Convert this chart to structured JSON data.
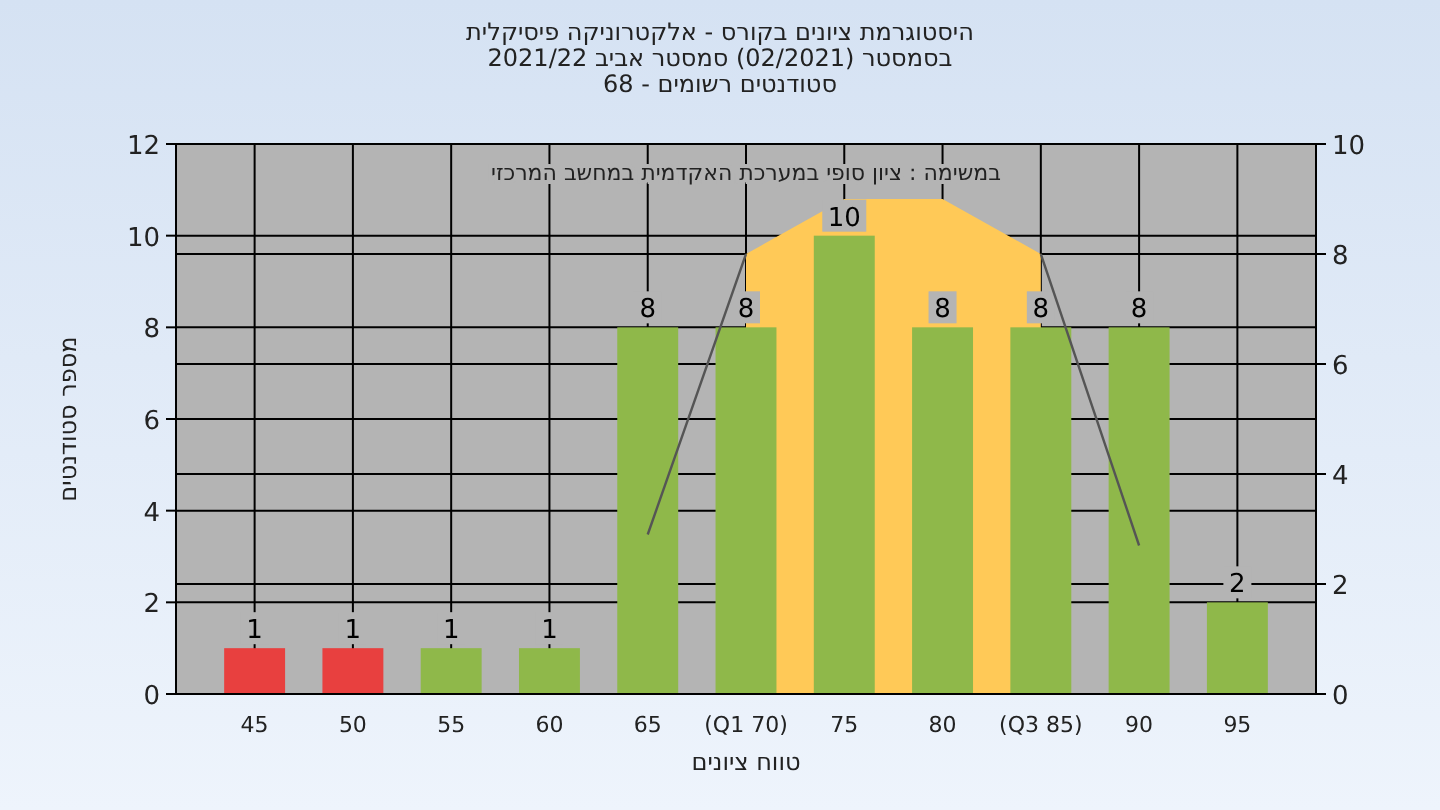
{
  "chart_data": {
    "type": "bar",
    "title": "היסטוגרמת ציונים בקורס - אלקטרוניקה פיסיקלית",
    "subtitle": "בסמסטר  (02/2021)  סמסטר אביב 2021/22\nסטודנטים רשומים - 68",
    "xlabel": "טווח ציונים",
    "ylabel": "מספר סטודנטים",
    "annotations": [
      "במשימה : ציון סופי במערכת האקדמית במחשב המרכזי"
    ],
    "categories": [
      "45",
      "50",
      "55",
      "60",
      "65",
      "(Q1 70)",
      "75",
      "80",
      "(Q3 85)",
      "90",
      "95"
    ],
    "series": [
      {
        "type": "area",
        "axis": "y2",
        "color": "#ffc957",
        "values": [
          null,
          null,
          null,
          null,
          null,
          8,
          9,
          9,
          8,
          null,
          null
        ]
      },
      {
        "type": "line",
        "axis": "y2",
        "color": "#555555",
        "values": [
          null,
          null,
          null,
          null,
          2.9,
          8,
          null,
          null,
          8,
          2.7,
          null
        ]
      },
      {
        "colors": [
          "#e8403f",
          "#e8403f",
          "#8fb84a",
          "#8fb84a",
          "#8fb84a",
          "#8fb84a",
          "#8fb84a",
          "#8fb84a",
          "#8fb84a",
          "#8fb84a",
          "#8fb84a"
        ],
        "values": [
          1,
          1,
          1,
          1,
          8,
          8,
          10,
          8,
          8,
          8,
          2
        ],
        "value_labels": [
          "1",
          "1",
          "1",
          "1",
          "8",
          "8",
          "10",
          "8",
          "8",
          "8",
          "2"
        ]
      }
    ],
    "ylim": [
      0,
      12
    ],
    "yticks": [
      0,
      2,
      4,
      6,
      8,
      10,
      12
    ],
    "y2lim": [
      0,
      10
    ],
    "y2ticks": [
      0,
      2,
      4,
      6,
      8,
      10
    ],
    "grid": true
  }
}
